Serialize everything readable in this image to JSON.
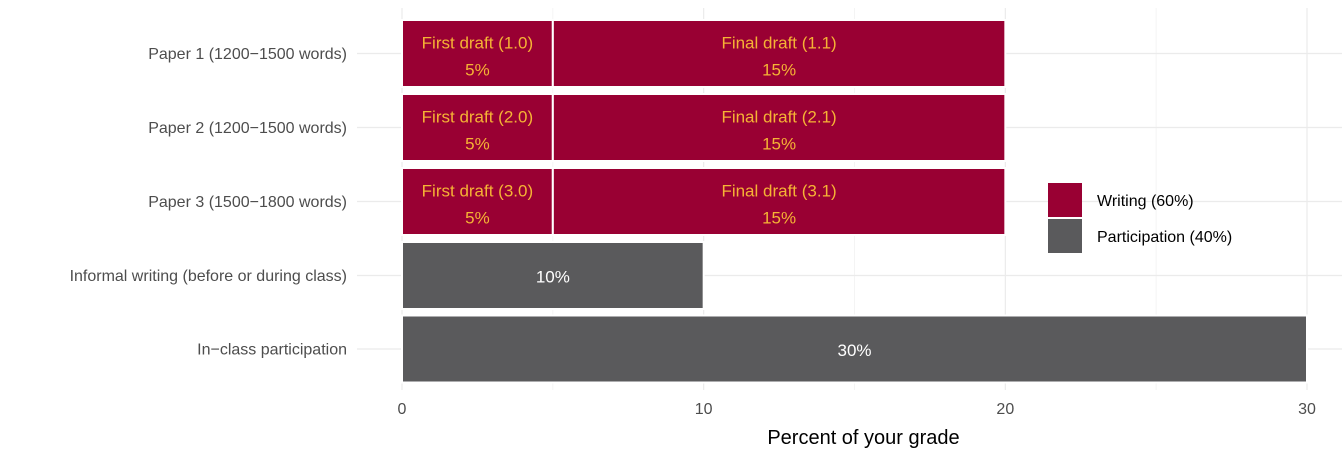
{
  "chart_data": {
    "type": "bar",
    "orientation": "horizontal",
    "stacked": true,
    "xlabel": "Percent of your grade",
    "ylabel": "",
    "xlim": [
      0,
      30
    ],
    "x_ticks": [
      0,
      10,
      20,
      30
    ],
    "grid": true,
    "legend_position": "right",
    "categories": [
      "Paper 1 (1200−1500 words)",
      "Paper 2 (1200−1500 words)",
      "Paper 3 (1500−1800 words)",
      "Informal writing (before or during class)",
      "In−class participation"
    ],
    "segments": [
      {
        "category": "Paper 1 (1200−1500 words)",
        "start": 0,
        "value": 5,
        "group": "writing",
        "label": "First draft (1.0)",
        "percent_label": "5%"
      },
      {
        "category": "Paper 1 (1200−1500 words)",
        "start": 5,
        "value": 15,
        "group": "writing",
        "label": "Final draft (1.1)",
        "percent_label": "15%"
      },
      {
        "category": "Paper 2 (1200−1500 words)",
        "start": 0,
        "value": 5,
        "group": "writing",
        "label": "First draft (2.0)",
        "percent_label": "5%"
      },
      {
        "category": "Paper 2 (1200−1500 words)",
        "start": 5,
        "value": 15,
        "group": "writing",
        "label": "Final draft (2.1)",
        "percent_label": "15%"
      },
      {
        "category": "Paper 3 (1500−1800 words)",
        "start": 0,
        "value": 5,
        "group": "writing",
        "label": "First draft (3.0)",
        "percent_label": "5%"
      },
      {
        "category": "Paper 3 (1500−1800 words)",
        "start": 5,
        "value": 15,
        "group": "writing",
        "label": "Final draft (3.1)",
        "percent_label": "15%"
      },
      {
        "category": "Informal writing (before or during class)",
        "start": 0,
        "value": 10,
        "group": "participation",
        "label": "",
        "percent_label": "10%"
      },
      {
        "category": "In−class participation",
        "start": 0,
        "value": 30,
        "group": "participation",
        "label": "",
        "percent_label": "30%"
      }
    ],
    "legend": [
      {
        "key": "writing",
        "label": "Writing (60%)",
        "color": "#990033"
      },
      {
        "key": "participation",
        "label": "Participation (40%)",
        "color": "#5a5a5c"
      }
    ],
    "colors": {
      "writing": "#990033",
      "participation": "#5a5a5c",
      "writing_label_text": "#f5b335",
      "participation_label_text": "#ffffff",
      "grid_major": "#ebebeb",
      "grid_minor": "#f4f4f4",
      "segment_border": "#ffffff"
    }
  }
}
